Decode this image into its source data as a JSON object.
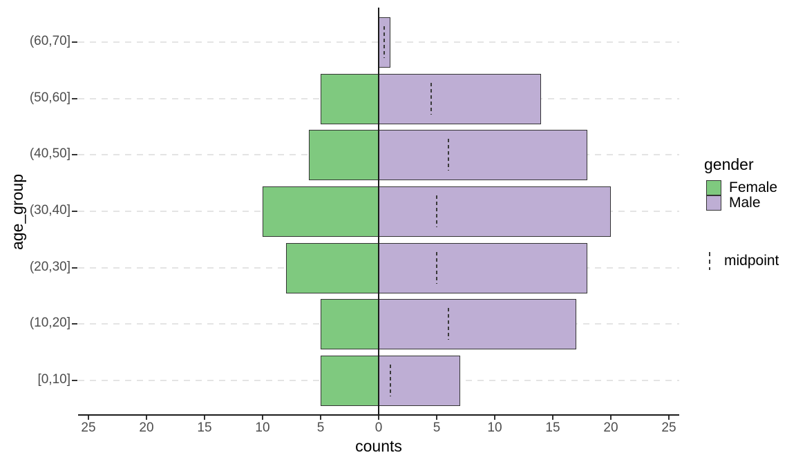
{
  "chart_data": {
    "type": "bar",
    "subtype": "population-pyramid-horizontal",
    "title": "",
    "xlabel": "counts",
    "ylabel": "age_group",
    "categories_top_to_bottom": [
      "(60,70]",
      "(50,60]",
      "(40,50]",
      "(30,40]",
      "(20,30]",
      "(10,20]",
      "[0,10]"
    ],
    "series": [
      {
        "name": "Female",
        "side": "left",
        "color": "#7fc97f",
        "values": [
          0,
          5,
          6,
          10,
          8,
          5,
          5
        ]
      },
      {
        "name": "Male",
        "side": "right",
        "color": "#beaed4",
        "values": [
          1,
          14,
          18,
          20,
          18,
          17,
          7
        ]
      }
    ],
    "midpoints": {
      "name": "midpoint",
      "values": [
        0.5,
        4.5,
        6,
        5,
        5,
        6,
        1
      ]
    },
    "x_axis": {
      "tick_values": [
        -25,
        -20,
        -15,
        -10,
        -5,
        0,
        5,
        10,
        15,
        20,
        25
      ],
      "tick_labels": [
        "25",
        "20",
        "15",
        "10",
        "5",
        "0",
        "5",
        "10",
        "15",
        "20",
        "25"
      ],
      "range": [
        -25.9,
        25.9
      ]
    },
    "grid": "horizontal-dashed",
    "zero_reference_line": true,
    "legend": {
      "gender_title": "gender",
      "items": [
        {
          "label": "Female",
          "color": "#7fc97f"
        },
        {
          "label": "Male",
          "color": "#beaed4"
        }
      ],
      "midpoint_label": "midpoint"
    }
  },
  "colors": {
    "female_fill": "#7fc97f",
    "male_fill": "#beaed4",
    "bar_border": "#343434",
    "axis_line": "#1a1a1a",
    "tick_mark": "#333333",
    "tick_text": "#4d4d4d",
    "title_text": "#000000",
    "grid_dash": "#e4e4e4",
    "midpoint_dash": "#3a3a3a",
    "background": "#ffffff"
  }
}
